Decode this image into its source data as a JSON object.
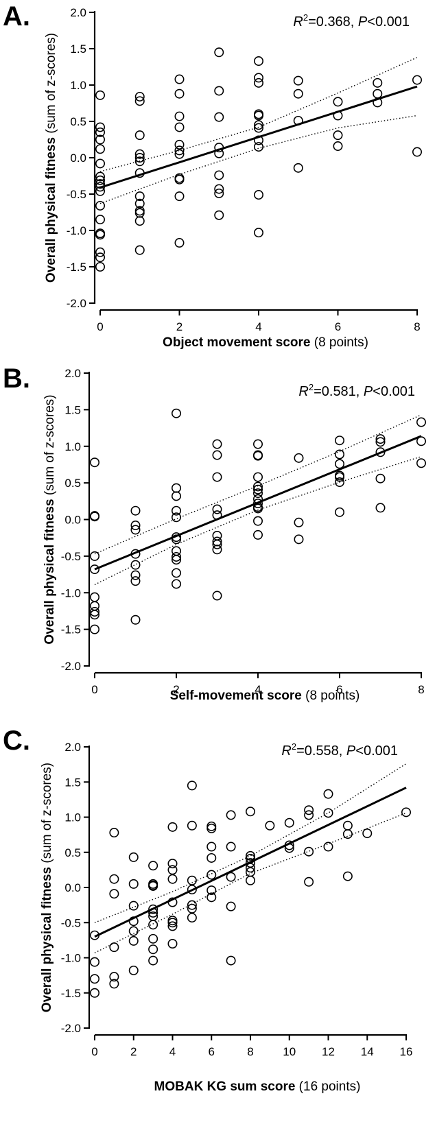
{
  "chart_data": [
    {
      "type": "scatter",
      "panel_label": "A.",
      "xlabel_bold": "Object movement score",
      "xlabel_rest": " (8 points)",
      "ylabel_bold": "Overall physical fitness",
      "ylabel_rest": " (sum of z-scores)",
      "stat_r2": "=0.368, ",
      "stat_p": "<0.001",
      "xlim": [
        0,
        8
      ],
      "ylim": [
        -2.0,
        2.0
      ],
      "x_ticks": [
        0,
        2,
        4,
        6,
        8
      ],
      "y_ticks": [
        "-2.0",
        "-1.5",
        "-1.0",
        "-0.5",
        "0.0",
        "0.5",
        "1.0",
        "1.5",
        "2.0"
      ],
      "points": [
        [
          0,
          0.86
        ],
        [
          0,
          0.42
        ],
        [
          0,
          0.35
        ],
        [
          0,
          0.25
        ],
        [
          0,
          0.12
        ],
        [
          0,
          -0.08
        ],
        [
          0,
          -0.26
        ],
        [
          0,
          -0.31
        ],
        [
          0,
          -0.36
        ],
        [
          0,
          -0.4
        ],
        [
          0,
          -0.46
        ],
        [
          0,
          -0.66
        ],
        [
          0,
          -0.85
        ],
        [
          0,
          -1.04
        ],
        [
          0,
          -1.06
        ],
        [
          0,
          -1.3
        ],
        [
          0,
          -1.37
        ],
        [
          0,
          -1.5
        ],
        [
          1,
          0.84
        ],
        [
          1,
          0.78
        ],
        [
          1,
          0.31
        ],
        [
          1,
          0.05
        ],
        [
          1,
          0.0
        ],
        [
          1,
          -0.05
        ],
        [
          1,
          -0.21
        ],
        [
          1,
          -0.53
        ],
        [
          1,
          -0.63
        ],
        [
          1,
          -0.73
        ],
        [
          1,
          -0.76
        ],
        [
          1,
          -0.87
        ],
        [
          1,
          -1.27
        ],
        [
          2,
          1.08
        ],
        [
          2,
          0.88
        ],
        [
          2,
          0.57
        ],
        [
          2,
          0.42
        ],
        [
          2,
          0.18
        ],
        [
          2,
          0.1
        ],
        [
          2,
          0.05
        ],
        [
          2,
          -0.28
        ],
        [
          2,
          -0.3
        ],
        [
          2,
          -0.53
        ],
        [
          2,
          -1.17
        ],
        [
          3,
          1.45
        ],
        [
          3,
          0.92
        ],
        [
          3,
          0.56
        ],
        [
          3,
          0.14
        ],
        [
          3,
          0.06
        ],
        [
          3,
          -0.24
        ],
        [
          3,
          -0.43
        ],
        [
          3,
          -0.49
        ],
        [
          3,
          -0.79
        ],
        [
          4,
          1.33
        ],
        [
          4,
          1.1
        ],
        [
          4,
          1.03
        ],
        [
          4,
          0.6
        ],
        [
          4,
          0.58
        ],
        [
          4,
          0.45
        ],
        [
          4,
          0.41
        ],
        [
          4,
          0.24
        ],
        [
          4,
          0.15
        ],
        [
          4,
          -0.51
        ],
        [
          4,
          -1.03
        ],
        [
          5,
          1.06
        ],
        [
          5,
          0.88
        ],
        [
          5,
          0.51
        ],
        [
          5,
          -0.14
        ],
        [
          6,
          0.77
        ],
        [
          6,
          0.58
        ],
        [
          6,
          0.31
        ],
        [
          6,
          0.16
        ],
        [
          7,
          1.03
        ],
        [
          7,
          0.88
        ],
        [
          7,
          0.76
        ],
        [
          8,
          1.07
        ],
        [
          8,
          0.08
        ]
      ],
      "fit": {
        "x": [
          0,
          8
        ],
        "y": [
          -0.41,
          0.98
        ]
      },
      "ci_upper": {
        "x": [
          0,
          2,
          4,
          6,
          8
        ],
        "y": [
          -0.19,
          0.1,
          0.42,
          0.89,
          1.38
        ]
      },
      "ci_lower": {
        "x": [
          0,
          2,
          4,
          6,
          8
        ],
        "y": [
          -0.63,
          -0.23,
          0.13,
          0.41,
          0.58
        ]
      }
    },
    {
      "type": "scatter",
      "panel_label": "B.",
      "xlabel_bold": "Self-movement score",
      "xlabel_rest": " (8 points)",
      "ylabel_bold": "Overall physical fitness",
      "ylabel_rest": " (sum of z-scores)",
      "stat_r2": "=0.581, ",
      "stat_p": "<0.001",
      "xlim": [
        0,
        8
      ],
      "ylim": [
        -2.0,
        2.0
      ],
      "x_ticks": [
        0,
        2,
        4,
        6,
        8
      ],
      "y_ticks": [
        "-2.0",
        "-1.5",
        "-1.0",
        "-0.5",
        "0.0",
        "0.5",
        "1.0",
        "1.5",
        "2.0"
      ],
      "points": [
        [
          0,
          0.78
        ],
        [
          0,
          0.05
        ],
        [
          0,
          0.04
        ],
        [
          0,
          -0.5
        ],
        [
          0,
          -0.68
        ],
        [
          0,
          -1.06
        ],
        [
          0,
          -1.18
        ],
        [
          0,
          -1.26
        ],
        [
          0,
          -1.3
        ],
        [
          0,
          -1.5
        ],
        [
          1,
          0.12
        ],
        [
          1,
          -0.08
        ],
        [
          1,
          -0.14
        ],
        [
          1,
          -0.47
        ],
        [
          1,
          -0.62
        ],
        [
          1,
          -0.76
        ],
        [
          1,
          -0.84
        ],
        [
          1,
          -1.37
        ],
        [
          2,
          1.45
        ],
        [
          2,
          0.43
        ],
        [
          2,
          0.32
        ],
        [
          2,
          0.12
        ],
        [
          2,
          0.03
        ],
        [
          2,
          -0.24
        ],
        [
          2,
          -0.27
        ],
        [
          2,
          -0.43
        ],
        [
          2,
          -0.51
        ],
        [
          2,
          -0.55
        ],
        [
          2,
          -0.73
        ],
        [
          2,
          -0.88
        ],
        [
          3,
          1.03
        ],
        [
          3,
          0.88
        ],
        [
          3,
          0.58
        ],
        [
          3,
          0.14
        ],
        [
          3,
          0.06
        ],
        [
          3,
          -0.22
        ],
        [
          3,
          -0.3
        ],
        [
          3,
          -0.34
        ],
        [
          3,
          -0.41
        ],
        [
          3,
          -1.04
        ],
        [
          4,
          1.03
        ],
        [
          4,
          0.88
        ],
        [
          4,
          0.87
        ],
        [
          4,
          0.58
        ],
        [
          4,
          0.45
        ],
        [
          4,
          0.41
        ],
        [
          4,
          0.36
        ],
        [
          4,
          0.28
        ],
        [
          4,
          0.22
        ],
        [
          4,
          0.17
        ],
        [
          4,
          0.15
        ],
        [
          4,
          -0.02
        ],
        [
          4,
          -0.21
        ],
        [
          5,
          0.84
        ],
        [
          5,
          -0.04
        ],
        [
          5,
          -0.27
        ],
        [
          6,
          1.08
        ],
        [
          6,
          0.89
        ],
        [
          6,
          0.76
        ],
        [
          6,
          0.6
        ],
        [
          6,
          0.58
        ],
        [
          6,
          0.51
        ],
        [
          6,
          0.1
        ],
        [
          7,
          1.1
        ],
        [
          7,
          1.06
        ],
        [
          7,
          0.92
        ],
        [
          7,
          0.56
        ],
        [
          7,
          0.16
        ],
        [
          8,
          1.33
        ],
        [
          8,
          1.07
        ],
        [
          8,
          0.77
        ]
      ],
      "fit": {
        "x": [
          0,
          8
        ],
        "y": [
          -0.68,
          1.14
        ]
      },
      "ci_upper": {
        "x": [
          0,
          2,
          4,
          6,
          8
        ],
        "y": [
          -0.47,
          0.01,
          0.46,
          0.93,
          1.43
        ]
      },
      "ci_lower": {
        "x": [
          0,
          2,
          4,
          6,
          8
        ],
        "y": [
          -0.89,
          -0.34,
          0.13,
          0.51,
          0.86
        ]
      }
    },
    {
      "type": "scatter",
      "panel_label": "C.",
      "xlabel_bold": "MOBAK KG sum score",
      "xlabel_rest": " (16 points)",
      "ylabel_bold": "Overall physical fitness",
      "ylabel_rest": " (sum of z-scores)",
      "stat_r2": "=0.558, ",
      "stat_p": "<0.001",
      "xlim": [
        0,
        16
      ],
      "ylim": [
        -2.0,
        2.0
      ],
      "x_ticks": [
        0,
        2,
        4,
        6,
        8,
        10,
        12,
        14,
        16
      ],
      "y_ticks": [
        "-2.0",
        "-1.5",
        "-1.0",
        "-0.5",
        "0.0",
        "0.5",
        "1.0",
        "1.5",
        "2.0"
      ],
      "points": [
        [
          0,
          -0.68
        ],
        [
          0,
          -1.06
        ],
        [
          0,
          -1.3
        ],
        [
          0,
          -1.5
        ],
        [
          1,
          0.78
        ],
        [
          1,
          0.12
        ],
        [
          1,
          -0.09
        ],
        [
          1,
          -0.85
        ],
        [
          1,
          -1.27
        ],
        [
          1,
          -1.37
        ],
        [
          2,
          0.43
        ],
        [
          2,
          0.05
        ],
        [
          2,
          -0.26
        ],
        [
          2,
          -0.48
        ],
        [
          2,
          -0.62
        ],
        [
          2,
          -0.76
        ],
        [
          2,
          -1.18
        ],
        [
          3,
          0.31
        ],
        [
          3,
          0.05
        ],
        [
          3,
          0.03
        ],
        [
          3,
          0.02
        ],
        [
          3,
          -0.31
        ],
        [
          3,
          -0.36
        ],
        [
          3,
          -0.41
        ],
        [
          3,
          -0.53
        ],
        [
          3,
          -0.73
        ],
        [
          3,
          -0.88
        ],
        [
          3,
          -1.04
        ],
        [
          4,
          0.86
        ],
        [
          4,
          0.34
        ],
        [
          4,
          0.25
        ],
        [
          4,
          0.12
        ],
        [
          4,
          -0.21
        ],
        [
          4,
          -0.47
        ],
        [
          4,
          -0.5
        ],
        [
          4,
          -0.55
        ],
        [
          4,
          -0.8
        ],
        [
          5,
          1.45
        ],
        [
          5,
          0.88
        ],
        [
          5,
          0.1
        ],
        [
          5,
          -0.03
        ],
        [
          5,
          -0.25
        ],
        [
          5,
          -0.3
        ],
        [
          5,
          -0.43
        ],
        [
          6,
          0.87
        ],
        [
          6,
          0.84
        ],
        [
          6,
          0.58
        ],
        [
          6,
          0.42
        ],
        [
          6,
          0.18
        ],
        [
          6,
          -0.04
        ],
        [
          6,
          -0.14
        ],
        [
          7,
          1.03
        ],
        [
          7,
          0.58
        ],
        [
          7,
          0.15
        ],
        [
          7,
          -0.27
        ],
        [
          7,
          -1.04
        ],
        [
          8,
          1.08
        ],
        [
          8,
          0.45
        ],
        [
          8,
          0.41
        ],
        [
          8,
          0.35
        ],
        [
          8,
          0.28
        ],
        [
          8,
          0.22
        ],
        [
          8,
          0.1
        ],
        [
          9,
          0.88
        ],
        [
          10,
          0.92
        ],
        [
          10,
          0.6
        ],
        [
          10,
          0.56
        ],
        [
          11,
          1.1
        ],
        [
          11,
          1.03
        ],
        [
          11,
          0.51
        ],
        [
          11,
          0.08
        ],
        [
          12,
          1.33
        ],
        [
          12,
          1.06
        ],
        [
          12,
          0.58
        ],
        [
          13,
          0.88
        ],
        [
          13,
          0.76
        ],
        [
          13,
          0.16
        ],
        [
          14,
          0.77
        ],
        [
          16,
          1.07
        ]
      ],
      "fit": {
        "x": [
          0,
          16
        ],
        "y": [
          -0.7,
          1.42
        ]
      },
      "ci_upper": {
        "x": [
          0,
          4,
          8,
          12,
          16
        ],
        "y": [
          -0.5,
          -0.06,
          0.45,
          1.06,
          1.76
        ]
      },
      "ci_lower": {
        "x": [
          0,
          4,
          8,
          12,
          16
        ],
        "y": [
          -0.93,
          -0.38,
          0.2,
          0.62,
          1.06
        ]
      }
    }
  ]
}
